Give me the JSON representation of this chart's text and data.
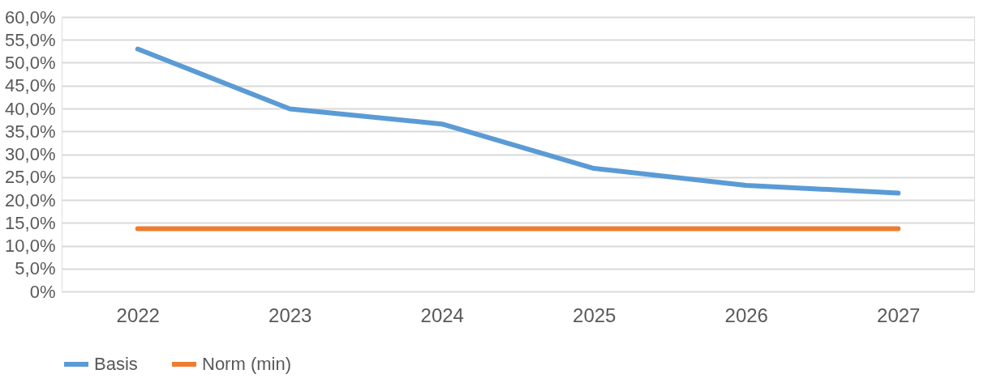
{
  "chart_data": {
    "type": "line",
    "categories": [
      "2022",
      "2023",
      "2024",
      "2025",
      "2026",
      "2027"
    ],
    "series": [
      {
        "name": "Basis",
        "color": "#5b9bd5",
        "values": [
          53.0,
          39.9,
          36.6,
          26.9,
          23.2,
          21.5
        ]
      },
      {
        "name": "Norm (min)",
        "color": "#ed7d31",
        "values": [
          13.7,
          13.7,
          13.7,
          13.7,
          13.7,
          13.7
        ]
      }
    ],
    "ylim": [
      0,
      60
    ],
    "yticks": [
      {
        "value": 0,
        "label": "0%"
      },
      {
        "value": 5,
        "label": "5,0%"
      },
      {
        "value": 10,
        "label": "10,0%"
      },
      {
        "value": 15,
        "label": "15,0%"
      },
      {
        "value": 20,
        "label": "20,0%"
      },
      {
        "value": 25,
        "label": "25,0%"
      },
      {
        "value": 30,
        "label": "30,0%"
      },
      {
        "value": 35,
        "label": "35,0%"
      },
      {
        "value": 40,
        "label": "40,0%"
      },
      {
        "value": 45,
        "label": "45,0%"
      },
      {
        "value": 50,
        "label": "50,0%"
      },
      {
        "value": 55,
        "label": "55,0%"
      },
      {
        "value": 60,
        "label": "60,0%"
      }
    ],
    "grid": "y",
    "legend": "bottom",
    "marker": "none",
    "line_style": "solid"
  }
}
